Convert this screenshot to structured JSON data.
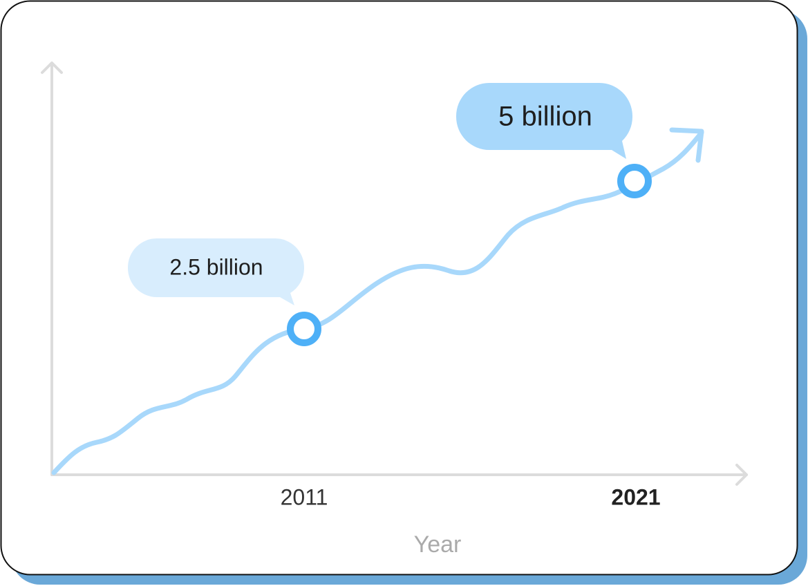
{
  "points": [
    {
      "label": "2.5 billion",
      "year": "2011"
    },
    {
      "label": "5 billion",
      "year": "2021"
    }
  ],
  "x_axis": {
    "title": "Year"
  }
}
